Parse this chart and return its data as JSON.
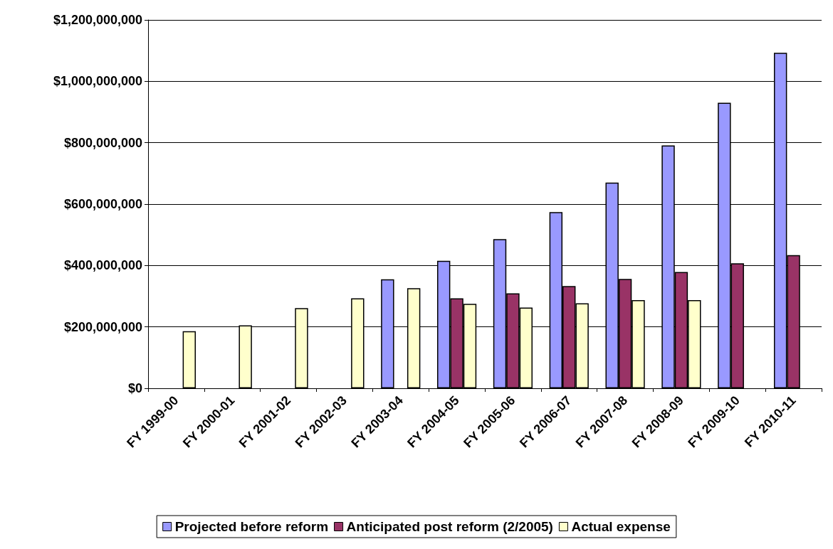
{
  "chart_data": {
    "type": "bar",
    "categories": [
      "FY 1999-00",
      "FY 2000-01",
      "FY 2001-02",
      "FY 2002-03",
      "FY 2003-04",
      "FY 2004-05",
      "FY 2005-06",
      "FY 2006-07",
      "FY 2007-08",
      "FY 2008-09",
      "FY 2009-10",
      "FY 2010-11"
    ],
    "series": [
      {
        "name": "Projected before reform",
        "color": "#9999ff",
        "values": [
          null,
          null,
          null,
          null,
          355000000,
          415000000,
          486000000,
          574000000,
          670000000,
          791000000,
          930000000,
          1093000000
        ]
      },
      {
        "name": "Anticipated post reform (2/2005)",
        "color": "#993366",
        "values": [
          null,
          null,
          null,
          null,
          null,
          293000000,
          309000000,
          333000000,
          356000000,
          379000000,
          407000000,
          434000000
        ]
      },
      {
        "name": "Actual expense",
        "color": "#ffffcc",
        "values": [
          186000000,
          205000000,
          261000000,
          293000000,
          326000000,
          275000000,
          263000000,
          277000000,
          287000000,
          287000000,
          null,
          null
        ]
      }
    ],
    "ylim": [
      0,
      1200000000
    ],
    "yticks": [
      {
        "value": 0,
        "label": "$0"
      },
      {
        "value": 200000000,
        "label": "$200,000,000"
      },
      {
        "value": 400000000,
        "label": "$400,000,000"
      },
      {
        "value": 600000000,
        "label": "$600,000,000"
      },
      {
        "value": 800000000,
        "label": "$800,000,000"
      },
      {
        "value": 1000000000,
        "label": "$1,000,000,000"
      },
      {
        "value": 1200000000,
        "label": "$1,200,000,000"
      }
    ],
    "grid": "y",
    "legend": "bottom"
  }
}
